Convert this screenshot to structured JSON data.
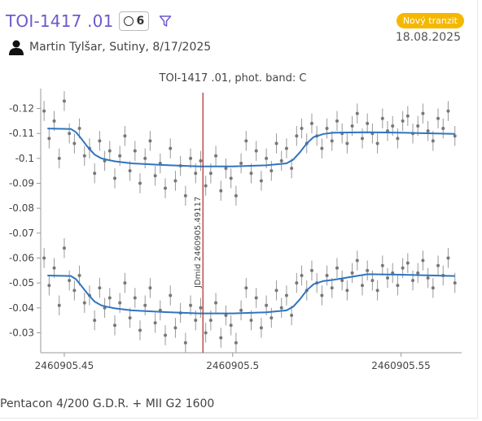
{
  "header": {
    "title": "TOI-1417 .01",
    "count": "6",
    "badge": "Nový tranzit",
    "date": "18.08.2025",
    "observer": "Martin Tylšar, Sutiny, 8/17/2025"
  },
  "chart_data": {
    "type": "scatter",
    "title": "TOI-1417 .01, phot. band: C",
    "xlabel": "",
    "ylabel": "",
    "xlim": [
      2460905.443,
      2460905.568
    ],
    "ylim": [
      -0.128,
      -0.022
    ],
    "y_inverted": true,
    "grid": false,
    "xticks": [
      2460905.45,
      2460905.5,
      2460905.55
    ],
    "xtick_labels": [
      "2460905.45",
      "2460905.5",
      "2460905.55"
    ],
    "yticks": [
      -0.12,
      -0.11,
      -0.1,
      -0.09,
      -0.08,
      -0.07,
      -0.06,
      -0.05,
      -0.04,
      -0.03
    ],
    "ytick_labels": [
      "-0.12",
      "-0.11",
      "-0.1",
      "-0.09",
      "-0.08",
      "-0.07",
      "-0.06",
      "-0.05",
      "-0.04",
      "-0.03"
    ],
    "annotation": {
      "text": "JDmid 2460905.49117",
      "x": 2460905.49117,
      "color": "#b22222"
    },
    "series": [
      {
        "kind": "points",
        "color": "#777777",
        "x": [
          2460905.444,
          2460905.4455,
          2460905.447,
          2460905.4485,
          2460905.45,
          2460905.4515,
          2460905.453,
          2460905.4545,
          2460905.456,
          2460905.4575,
          2460905.459,
          2460905.4605,
          2460905.462,
          2460905.4635,
          2460905.465,
          2460905.4665,
          2460905.468,
          2460905.4695,
          2460905.471,
          2460905.4725,
          2460905.474,
          2460905.4755,
          2460905.477,
          2460905.4785,
          2460905.48,
          2460905.4815,
          2460905.483,
          2460905.4845,
          2460905.486,
          2460905.4875,
          2460905.489,
          2460905.4905,
          2460905.492,
          2460905.4935,
          2460905.495,
          2460905.4965,
          2460905.498,
          2460905.4995,
          2460905.501,
          2460905.5025,
          2460905.504,
          2460905.5055,
          2460905.507,
          2460905.5085,
          2460905.51,
          2460905.5115,
          2460905.513,
          2460905.5145,
          2460905.516,
          2460905.5175,
          2460905.519,
          2460905.5205,
          2460905.522,
          2460905.5235,
          2460905.525,
          2460905.5265,
          2460905.528,
          2460905.5295,
          2460905.531,
          2460905.5325,
          2460905.534,
          2460905.5355,
          2460905.537,
          2460905.5385,
          2460905.54,
          2460905.5415,
          2460905.543,
          2460905.5445,
          2460905.546,
          2460905.5475,
          2460905.549,
          2460905.5505,
          2460905.552,
          2460905.5535,
          2460905.555,
          2460905.5565,
          2460905.558,
          2460905.5595,
          2460905.561,
          2460905.5625,
          2460905.564,
          2460905.566
        ],
        "y": [
          -0.119,
          -0.108,
          -0.115,
          -0.1,
          -0.123,
          -0.11,
          -0.106,
          -0.112,
          -0.101,
          -0.104,
          -0.094,
          -0.107,
          -0.099,
          -0.103,
          -0.092,
          -0.101,
          -0.109,
          -0.095,
          -0.103,
          -0.09,
          -0.1,
          -0.107,
          -0.093,
          -0.098,
          -0.088,
          -0.104,
          -0.091,
          -0.097,
          -0.085,
          -0.1,
          -0.094,
          -0.099,
          -0.089,
          -0.094,
          -0.101,
          -0.087,
          -0.096,
          -0.092,
          -0.085,
          -0.098,
          -0.107,
          -0.094,
          -0.103,
          -0.091,
          -0.1,
          -0.095,
          -0.106,
          -0.099,
          -0.104,
          -0.096,
          -0.109,
          -0.112,
          -0.106,
          -0.114,
          -0.109,
          -0.104,
          -0.112,
          -0.107,
          -0.115,
          -0.11,
          -0.106,
          -0.113,
          -0.118,
          -0.108,
          -0.114,
          -0.11,
          -0.106,
          -0.116,
          -0.111,
          -0.113,
          -0.108,
          -0.115,
          -0.117,
          -0.11,
          -0.113,
          -0.118,
          -0.111,
          -0.107,
          -0.116,
          -0.112,
          -0.119,
          -0.109
        ],
        "err": 0.004
      },
      {
        "kind": "line",
        "color": "#2f74c0",
        "x": [
          2460905.445,
          2460905.452,
          2460905.4535,
          2460905.455,
          2460905.457,
          2460905.459,
          2460905.461,
          2460905.4625,
          2460905.465,
          2460905.47,
          2460905.48,
          2460905.49,
          2460905.5,
          2460905.51,
          2460905.516,
          2460905.518,
          2460905.52,
          2460905.522,
          2460905.524,
          2460905.527,
          2460905.53,
          2460905.54,
          2460905.55,
          2460905.566
        ],
        "y": [
          -0.112,
          -0.1118,
          -0.1105,
          -0.108,
          -0.1045,
          -0.1015,
          -0.1,
          -0.0995,
          -0.0988,
          -0.098,
          -0.0973,
          -0.0968,
          -0.0968,
          -0.0972,
          -0.098,
          -0.0995,
          -0.1025,
          -0.106,
          -0.1085,
          -0.1098,
          -0.1103,
          -0.1105,
          -0.1103,
          -0.1098
        ]
      },
      {
        "kind": "points",
        "color": "#777777",
        "x": [
          2460905.444,
          2460905.4455,
          2460905.447,
          2460905.4485,
          2460905.45,
          2460905.4515,
          2460905.453,
          2460905.4545,
          2460905.456,
          2460905.4575,
          2460905.459,
          2460905.4605,
          2460905.462,
          2460905.4635,
          2460905.465,
          2460905.4665,
          2460905.468,
          2460905.4695,
          2460905.471,
          2460905.4725,
          2460905.474,
          2460905.4755,
          2460905.477,
          2460905.4785,
          2460905.48,
          2460905.4815,
          2460905.483,
          2460905.4845,
          2460905.486,
          2460905.4875,
          2460905.489,
          2460905.4905,
          2460905.492,
          2460905.4935,
          2460905.495,
          2460905.4965,
          2460905.498,
          2460905.4995,
          2460905.501,
          2460905.5025,
          2460905.504,
          2460905.5055,
          2460905.507,
          2460905.5085,
          2460905.51,
          2460905.5115,
          2460905.513,
          2460905.5145,
          2460905.516,
          2460905.5175,
          2460905.519,
          2460905.5205,
          2460905.522,
          2460905.5235,
          2460905.525,
          2460905.5265,
          2460905.528,
          2460905.5295,
          2460905.531,
          2460905.5325,
          2460905.534,
          2460905.5355,
          2460905.537,
          2460905.5385,
          2460905.54,
          2460905.5415,
          2460905.543,
          2460905.5445,
          2460905.546,
          2460905.5475,
          2460905.549,
          2460905.5505,
          2460905.552,
          2460905.5535,
          2460905.555,
          2460905.5565,
          2460905.558,
          2460905.5595,
          2460905.561,
          2460905.5625,
          2460905.564,
          2460905.566
        ],
        "y": [
          -0.06,
          -0.049,
          -0.056,
          -0.041,
          -0.064,
          -0.051,
          -0.047,
          -0.053,
          -0.042,
          -0.045,
          -0.035,
          -0.048,
          -0.04,
          -0.044,
          -0.033,
          -0.042,
          -0.05,
          -0.036,
          -0.044,
          -0.031,
          -0.041,
          -0.048,
          -0.034,
          -0.039,
          -0.029,
          -0.045,
          -0.032,
          -0.038,
          -0.026,
          -0.041,
          -0.035,
          -0.04,
          -0.03,
          -0.035,
          -0.042,
          -0.028,
          -0.037,
          -0.033,
          -0.026,
          -0.039,
          -0.048,
          -0.035,
          -0.044,
          -0.032,
          -0.041,
          -0.036,
          -0.047,
          -0.04,
          -0.045,
          -0.037,
          -0.05,
          -0.053,
          -0.047,
          -0.055,
          -0.05,
          -0.045,
          -0.053,
          -0.048,
          -0.056,
          -0.051,
          -0.047,
          -0.054,
          -0.059,
          -0.049,
          -0.055,
          -0.051,
          -0.047,
          -0.057,
          -0.052,
          -0.054,
          -0.049,
          -0.056,
          -0.058,
          -0.051,
          -0.054,
          -0.059,
          -0.052,
          -0.048,
          -0.057,
          -0.053,
          -0.06,
          -0.05
        ],
        "err": 0.004
      },
      {
        "kind": "line",
        "color": "#2f74c0",
        "x": [
          2460905.445,
          2460905.452,
          2460905.4535,
          2460905.455,
          2460905.457,
          2460905.459,
          2460905.461,
          2460905.4625,
          2460905.465,
          2460905.47,
          2460905.48,
          2460905.49,
          2460905.5,
          2460905.51,
          2460905.516,
          2460905.518,
          2460905.52,
          2460905.522,
          2460905.524,
          2460905.527,
          2460905.53,
          2460905.54,
          2460905.55,
          2460905.566
        ],
        "y": [
          -0.053,
          -0.0528,
          -0.0515,
          -0.049,
          -0.0455,
          -0.0425,
          -0.041,
          -0.0405,
          -0.0398,
          -0.039,
          -0.0383,
          -0.0378,
          -0.0378,
          -0.0382,
          -0.039,
          -0.0405,
          -0.0435,
          -0.047,
          -0.0495,
          -0.0508,
          -0.0513,
          -0.0535,
          -0.0533,
          -0.0528
        ]
      }
    ]
  },
  "footer": {
    "setup": "Pentacon 4/200 G.D.R. + MII G2 1600"
  }
}
